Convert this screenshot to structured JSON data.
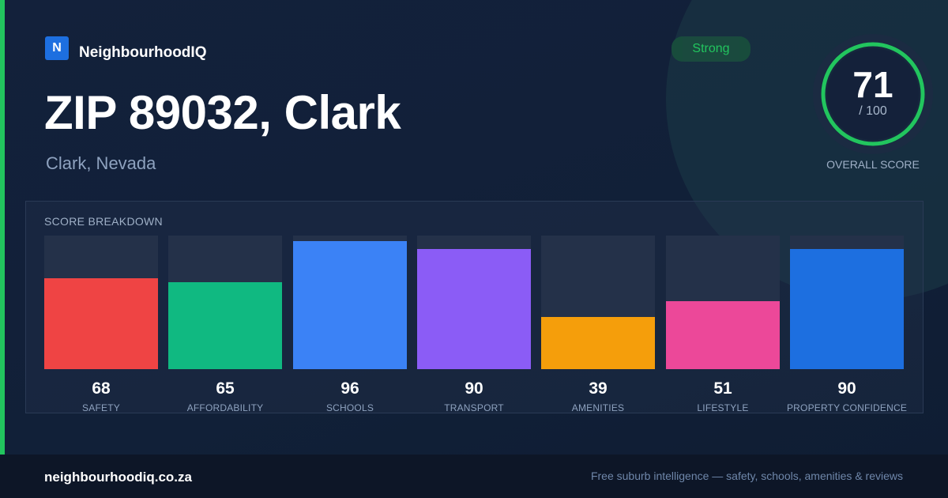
{
  "brand": {
    "logo_letter": "N",
    "name": "NeighbourhoodIQ",
    "logo_color": "#1d6fe0"
  },
  "header": {
    "title": "ZIP 89032, Clark",
    "subtitle": "Clark, Nevada",
    "rating_label": "Strong"
  },
  "overall": {
    "score": "71",
    "max_label": "/ 100",
    "caption": "OVERALL SCORE",
    "fraction": 0.71,
    "ring_color": "#22c55e"
  },
  "breakdown": {
    "title": "SCORE BREAKDOWN"
  },
  "chart_data": {
    "type": "bar",
    "categories": [
      "SAFETY",
      "AFFORDABILITY",
      "SCHOOLS",
      "TRANSPORT",
      "AMENITIES",
      "LIFESTYLE",
      "PROPERTY CONFIDENCE"
    ],
    "values": [
      68,
      65,
      96,
      90,
      39,
      51,
      90
    ],
    "colors": [
      "#ef4444",
      "#10b981",
      "#3b82f6",
      "#8b5cf6",
      "#f59e0b",
      "#ec4899",
      "#1d6fe0"
    ],
    "ylim": [
      0,
      100
    ]
  },
  "footer": {
    "url": "neighbourhoodiq.co.za",
    "tagline": "Free suburb intelligence — safety, schools, amenities & reviews"
  },
  "colors": {
    "accent": "#22c55e",
    "background": "#13203a"
  }
}
